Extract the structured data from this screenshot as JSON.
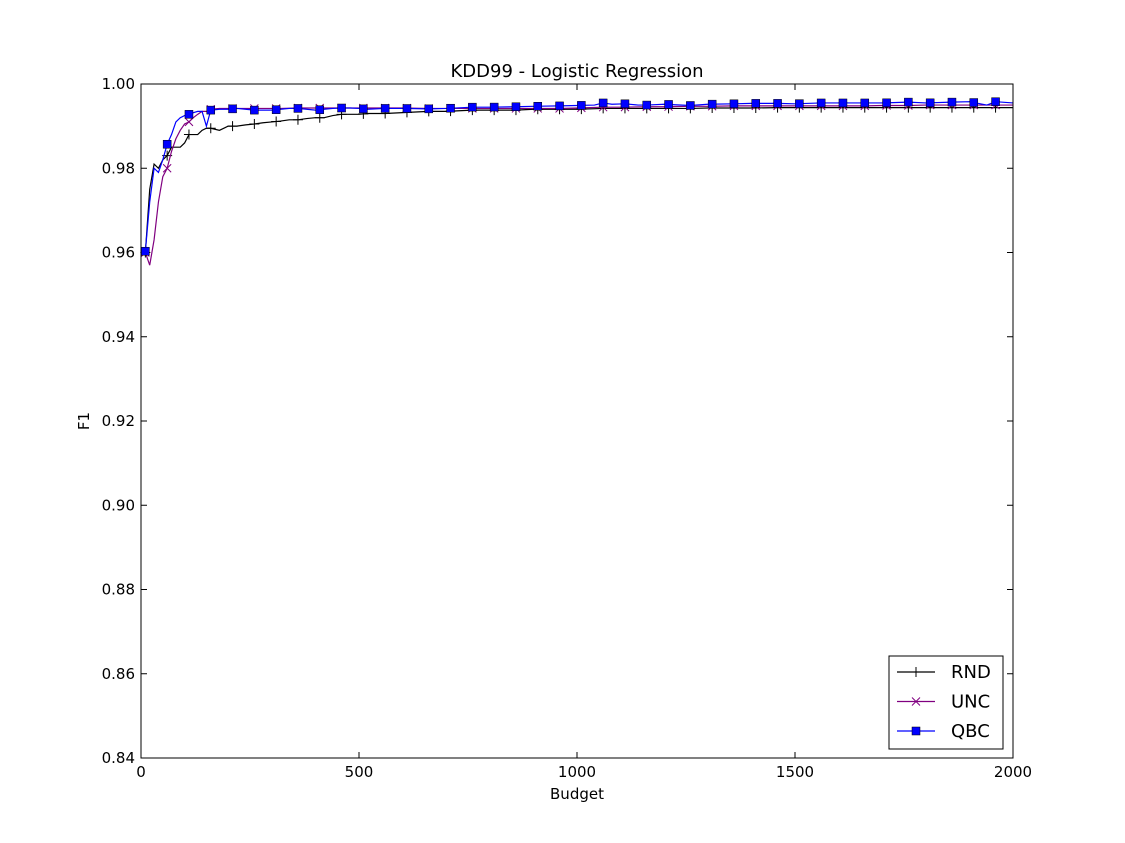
{
  "chart_data": {
    "type": "line",
    "title": "KDD99 - Logistic Regression",
    "xlabel": "Budget",
    "ylabel": "F1",
    "xlim": [
      0,
      2000
    ],
    "ylim": [
      0.84,
      1.0
    ],
    "xticks": [
      0,
      500,
      1000,
      1500,
      2000
    ],
    "xtick_labels": [
      "0",
      "500",
      "1000",
      "1500",
      "2000"
    ],
    "yticks": [
      0.84,
      0.86,
      0.88,
      0.9,
      0.92,
      0.94,
      0.96,
      0.98,
      1.0
    ],
    "ytick_labels": [
      "0.84",
      "0.86",
      "0.88",
      "0.90",
      "0.92",
      "0.94",
      "0.96",
      "0.98",
      "1.00"
    ],
    "grid": false,
    "legend_position": "bottom-right",
    "series": [
      {
        "name": "RND",
        "color": "#000000",
        "marker": "plus",
        "x": [
          10,
          20,
          30,
          40,
          50,
          60,
          70,
          80,
          90,
          100,
          110,
          120,
          130,
          140,
          150,
          160,
          180,
          200,
          220,
          240,
          260,
          280,
          300,
          320,
          340,
          360,
          380,
          400,
          420,
          440,
          460,
          480,
          500,
          520,
          560,
          600,
          660,
          700,
          760,
          800,
          860,
          900,
          960,
          1000,
          1060,
          1100,
          1160,
          1200,
          1260,
          1300,
          1360,
          1400,
          1460,
          1500,
          1560,
          1600,
          1660,
          1700,
          1760,
          1800,
          1860,
          1900,
          1960,
          2000
        ],
        "y": [
          0.96,
          0.975,
          0.981,
          0.98,
          0.982,
          0.983,
          0.985,
          0.985,
          0.985,
          0.986,
          0.988,
          0.988,
          0.988,
          0.989,
          0.9895,
          0.9895,
          0.989,
          0.99,
          0.99,
          0.9903,
          0.9905,
          0.9908,
          0.991,
          0.9912,
          0.9915,
          0.9915,
          0.9918,
          0.992,
          0.992,
          0.9925,
          0.9928,
          0.9928,
          0.9928,
          0.993,
          0.993,
          0.9932,
          0.9935,
          0.9935,
          0.9938,
          0.9938,
          0.9938,
          0.994,
          0.994,
          0.994,
          0.9942,
          0.9942,
          0.9942,
          0.9942,
          0.9942,
          0.9943,
          0.9943,
          0.9943,
          0.9944,
          0.9944,
          0.9944,
          0.9944,
          0.9944,
          0.9944,
          0.9944,
          0.9944,
          0.9944,
          0.9944,
          0.9944,
          0.9944
        ],
        "marker_x": [
          10,
          60,
          110,
          160,
          210,
          260,
          310,
          360,
          410,
          460,
          510,
          560,
          610,
          660,
          710,
          760,
          810,
          860,
          910,
          960,
          1010,
          1060,
          1110,
          1160,
          1210,
          1260,
          1310,
          1360,
          1410,
          1460,
          1510,
          1560,
          1610,
          1660,
          1710,
          1760,
          1810,
          1860,
          1910,
          1960
        ]
      },
      {
        "name": "UNC",
        "color": "#800080",
        "marker": "x",
        "x": [
          10,
          20,
          30,
          40,
          50,
          60,
          70,
          80,
          90,
          100,
          110,
          120,
          130,
          140,
          150,
          160,
          180,
          200,
          240,
          280,
          320,
          360,
          400,
          460,
          500,
          560,
          600,
          660,
          700,
          760,
          800,
          860,
          900,
          960,
          1000,
          1060,
          1100,
          1160,
          1200,
          1260,
          1300,
          1360,
          1400,
          1460,
          1500,
          1560,
          1600,
          1660,
          1700,
          1760,
          1800,
          1860,
          1900,
          1960,
          2000
        ],
        "y": [
          0.96,
          0.957,
          0.963,
          0.972,
          0.978,
          0.98,
          0.984,
          0.987,
          0.989,
          0.9905,
          0.991,
          0.992,
          0.9928,
          0.9935,
          0.9935,
          0.994,
          0.9942,
          0.9942,
          0.9942,
          0.9942,
          0.9942,
          0.9943,
          0.9943,
          0.9943,
          0.9943,
          0.9943,
          0.9943,
          0.9942,
          0.9942,
          0.9942,
          0.9942,
          0.9942,
          0.9942,
          0.9942,
          0.9943,
          0.9945,
          0.9945,
          0.9946,
          0.9946,
          0.9947,
          0.9947,
          0.9948,
          0.9948,
          0.9948,
          0.9948,
          0.9948,
          0.9948,
          0.9948,
          0.9949,
          0.9949,
          0.995,
          0.995,
          0.995,
          0.995,
          0.995
        ],
        "marker_x": [
          10,
          60,
          110,
          160,
          210,
          260,
          310,
          360,
          410,
          460,
          510,
          560,
          610,
          660,
          710,
          760,
          810,
          860,
          910,
          960,
          1010,
          1060,
          1110,
          1160,
          1210,
          1260,
          1310,
          1360,
          1410,
          1460,
          1510,
          1560,
          1610,
          1660,
          1710,
          1760,
          1810,
          1860,
          1910,
          1960
        ]
      },
      {
        "name": "QBC",
        "color": "#0000ff",
        "marker": "square",
        "x": [
          10,
          20,
          30,
          40,
          50,
          60,
          70,
          80,
          90,
          100,
          110,
          120,
          130,
          140,
          150,
          160,
          180,
          200,
          220,
          240,
          260,
          280,
          300,
          320,
          340,
          360,
          380,
          400,
          420,
          440,
          460,
          480,
          500,
          520,
          560,
          600,
          660,
          700,
          760,
          800,
          860,
          900,
          960,
          1000,
          1040,
          1060,
          1080,
          1110,
          1140,
          1160,
          1200,
          1260,
          1300,
          1360,
          1400,
          1460,
          1500,
          1560,
          1600,
          1660,
          1700,
          1760,
          1800,
          1860,
          1900,
          1940,
          1960,
          2000
        ],
        "y": [
          0.9603,
          0.972,
          0.98,
          0.979,
          0.982,
          0.9857,
          0.988,
          0.991,
          0.992,
          0.9925,
          0.9928,
          0.9932,
          0.9935,
          0.9935,
          0.99,
          0.9938,
          0.994,
          0.994,
          0.9942,
          0.994,
          0.9938,
          0.9938,
          0.9938,
          0.994,
          0.9942,
          0.9942,
          0.994,
          0.9938,
          0.994,
          0.9942,
          0.9943,
          0.9943,
          0.9942,
          0.994,
          0.9942,
          0.9942,
          0.9941,
          0.9942,
          0.9945,
          0.9945,
          0.9946,
          0.9947,
          0.9948,
          0.9949,
          0.995,
          0.9955,
          0.9952,
          0.9953,
          0.995,
          0.995,
          0.9952,
          0.9949,
          0.9952,
          0.9953,
          0.9954,
          0.9954,
          0.9953,
          0.9955,
          0.9955,
          0.9955,
          0.9955,
          0.9957,
          0.9955,
          0.9957,
          0.9958,
          0.995,
          0.9958,
          0.9955
        ],
        "marker_x": [
          10,
          60,
          110,
          160,
          210,
          260,
          310,
          360,
          410,
          460,
          510,
          560,
          610,
          660,
          710,
          760,
          810,
          860,
          910,
          960,
          1010,
          1060,
          1110,
          1160,
          1210,
          1260,
          1310,
          1360,
          1410,
          1460,
          1510,
          1560,
          1610,
          1660,
          1710,
          1760,
          1810,
          1860,
          1910,
          1960
        ]
      }
    ]
  }
}
